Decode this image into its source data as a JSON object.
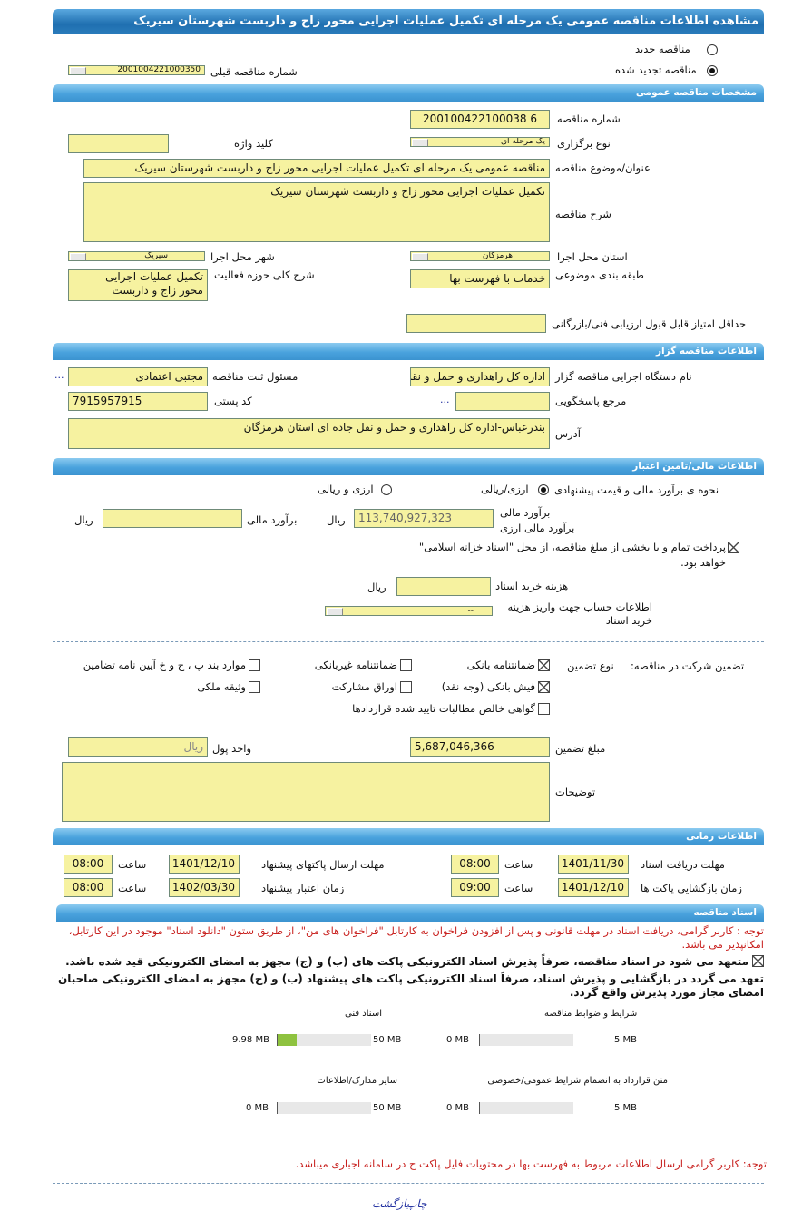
{
  "title": "مشاهده اطلاعات مناقصه عمومی یک مرحله ای تکمیل عملیات اجرایی محور زاج و داربست شهرستان سیریک",
  "tender_type": {
    "new_label": "مناقصه جدید",
    "renewed_label": "مناقصه تجدید شده",
    "selected": "renewed",
    "prev_number_label": "شماره مناقصه قبلی",
    "prev_number": "2001004221000350"
  },
  "general": {
    "header": "مشخصات مناقصه عمومی",
    "number_label": "شماره مناقصه",
    "number": "200100422100038 6",
    "holding_type_label": "نوع برگزاری",
    "holding_type": "یک مرحله ای",
    "keyword_label": "کلید واژه",
    "keyword": "",
    "subject_label": "عنوان/موضوع مناقصه",
    "subject": "مناقصه عمومی یک مرحله ای تکمیل عملیات اجرایی محور زاج و داربست شهرستان سیریک",
    "description_label": "شرح مناقصه",
    "description": "تکمیل عملیات اجرایی محور زاج و داربست شهرستان سیریک",
    "province_label": "استان محل اجرا",
    "province": "هرمزگان",
    "city_label": "شهر محل اجرا",
    "city": "سیریک",
    "category_label": "طبقه بندی موضوعی",
    "category": "خدمات با فهرست بها",
    "activity_label": "شرح کلی حوزه فعالیت",
    "activity": "تکمیل عملیات اجرایی محور زاج و داربست",
    "min_score_label": "حداقل امتیاز قابل قبول ارزیابی فنی/بازرگانی",
    "min_score": ""
  },
  "organizer": {
    "header": "اطلاعات مناقصه گزار",
    "org_label": "نام دستگاه اجرایی مناقصه گزار",
    "org": "اداره کل راهداری و حمل و نقل",
    "registrar_label": "مسئول ثبت مناقصه",
    "registrar": "مجتبی اعتمادی",
    "more": "...",
    "reference_label": "مرجع پاسخگویی",
    "reference": "",
    "reference_more": "...",
    "postal_label": "کد پستی",
    "postal": "7915957915",
    "address_label": "آدرس",
    "address": "بندرعباس-اداره کل راهداری و حمل و نقل جاده ای استان هرمزگان"
  },
  "financial": {
    "header": "اطلاعات مالی/تامین اعتبار",
    "method_label": "نحوه ی برآورد مالی و قیمت پیشنهادی",
    "opt_rial": "ارزی/ریالی",
    "opt_both": "ارزی و ریالی",
    "selected": "opt_rial",
    "estimate_label": "برآورد مالی",
    "estimate_fx_label": "برآورد مالی ارزی",
    "estimate": "113,740,927,323",
    "rial": "ریال",
    "estimate2_label": "برآورد مالی",
    "estimate2": "",
    "treasury_text": "پرداخت تمام و یا بخشی از مبلغ مناقصه، از محل \"اسناد خزانه اسلامی\" خواهد بود.",
    "treasury_checked": true,
    "doc_cost_label": "هزینه خرید اسناد",
    "doc_cost": "",
    "account_label": "اطلاعات حساب جهت واریز هزینه خرید اسناد",
    "account": "--"
  },
  "guarantee": {
    "label": "تضمین شرکت در مناقصه:",
    "type_label": "نوع تضمین",
    "options": [
      {
        "label": "ضمانتنامه بانکی",
        "checked": true
      },
      {
        "label": "ضمانتنامه غیربانکی",
        "checked": false
      },
      {
        "label": "موارد بند پ ، ح و خ آیین نامه تضامین",
        "checked": false
      },
      {
        "label": "فیش بانکی (وجه نقد)",
        "checked": true
      },
      {
        "label": "اوراق مشارکت",
        "checked": false
      },
      {
        "label": "وثیقه ملکی",
        "checked": false
      },
      {
        "label": "گواهی خالص مطالبات تایید شده قراردادها",
        "checked": false
      }
    ],
    "amount_label": "مبلغ تضمین",
    "amount": "5,687,046,366",
    "currency_label": "واحد پول",
    "currency": "ریال",
    "notes_label": "توضیحات",
    "notes": ""
  },
  "timing": {
    "header": "اطلاعات زمانی",
    "time_label": "ساعت",
    "doc_deadline_label": "مهلت دریافت اسناد",
    "doc_deadline": "1401/11/30",
    "doc_deadline_time": "08:00",
    "submit_deadline_label": "مهلت ارسال پاکتهای پیشنهاد",
    "submit_deadline": "1401/12/10",
    "submit_deadline_time": "08:00",
    "opening_label": "زمان بازگشایی پاکت ها",
    "opening": "1401/12/10",
    "opening_time": "09:00",
    "validity_label": "زمان اعتبار پیشنهاد",
    "validity": "1402/03/30",
    "validity_time": "08:00"
  },
  "documents": {
    "header": "اسناد مناقصه",
    "note": "توجه : کاربر گرامی، دریافت اسناد در مهلت قانونی و پس از افزودن فراخوان به کارتابل \"فراخوان های من\"، از طریق ستون \"دانلود اسناد\" موجود در این کارتابل، امکانپذیر می باشد.",
    "commit1": "متعهد می شود در اسناد مناقصه، صرفاً پذیرش اسناد الکترونیکی پاکت های (ب) و (ج) مجهز به امضای الکترونیکی قید شده باشد.",
    "commit2": "تعهد می گردد در بازگشایی و پذیرش اسناد، صرفاً اسناد الکترونیکی پاکت های پیشنهاد (ب) و (ج) مجهز به امضای الکترونیکی صاحبان امضای مجاز مورد پذیرش واقع گردد.",
    "files": [
      {
        "label": "شرایط و ضوابط مناقصه",
        "size": "0 MB",
        "max": "5 MB",
        "fraction": 0
      },
      {
        "label": "اسناد فنی",
        "size": "9.98 MB",
        "max": "50 MB",
        "fraction": 0.2
      },
      {
        "label": "متن قرارداد به انضمام شرایط عمومی/خصوصی",
        "size": "0 MB",
        "max": "5 MB",
        "fraction": 0
      },
      {
        "label": "سایر مدارک/اطلاعات",
        "size": "0 MB",
        "max": "50 MB",
        "fraction": 0
      }
    ],
    "note2": "توجه: کاربر گرامی ارسال اطلاعات مربوط به فهرست بها در محتویات فایل پاکت ج در سامانه اجباری میباشد."
  },
  "footer": {
    "print": "چاپ",
    "back": "بازگشت"
  }
}
